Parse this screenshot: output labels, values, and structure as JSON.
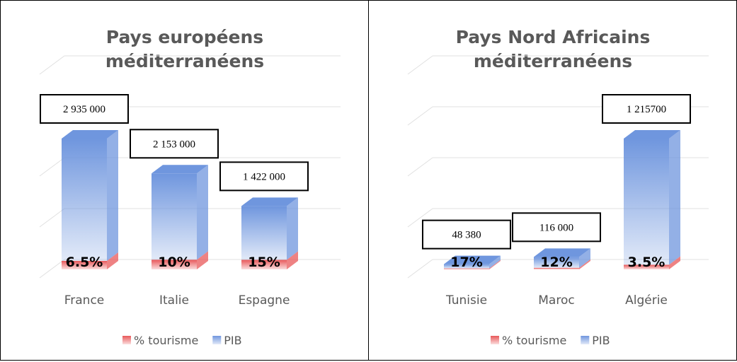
{
  "chart_data": [
    {
      "type": "bar3d-stacked",
      "title": "Pays européens méditerranéens",
      "categories": [
        "France",
        "Italie",
        "Espagne"
      ],
      "series": [
        {
          "name": "% tourisme",
          "color": "#e8585a",
          "values": [
            6.5,
            10,
            15
          ],
          "value_labels": [
            "6.5%",
            "10%",
            "15%"
          ]
        },
        {
          "name": "PIB",
          "color": "#6f96de",
          "values": [
            2935000,
            2153000,
            1422000
          ],
          "value_labels": [
            "2 935 000",
            "2 153 000",
            "1 422 000"
          ]
        }
      ]
    },
    {
      "type": "bar3d-stacked",
      "title": "Pays Nord Africains méditerranéens",
      "categories": [
        "Tunisie",
        "Maroc",
        "Algérie"
      ],
      "series": [
        {
          "name": "% tourisme",
          "color": "#e8585a",
          "values": [
            17,
            12,
            3.5
          ],
          "value_labels": [
            "17%",
            "12%",
            "3.5%"
          ]
        },
        {
          "name": "PIB",
          "color": "#6f96de",
          "values": [
            48380,
            116000,
            1215700
          ],
          "value_labels": [
            "48 380",
            "116 000",
            "1 215700"
          ]
        }
      ]
    }
  ]
}
